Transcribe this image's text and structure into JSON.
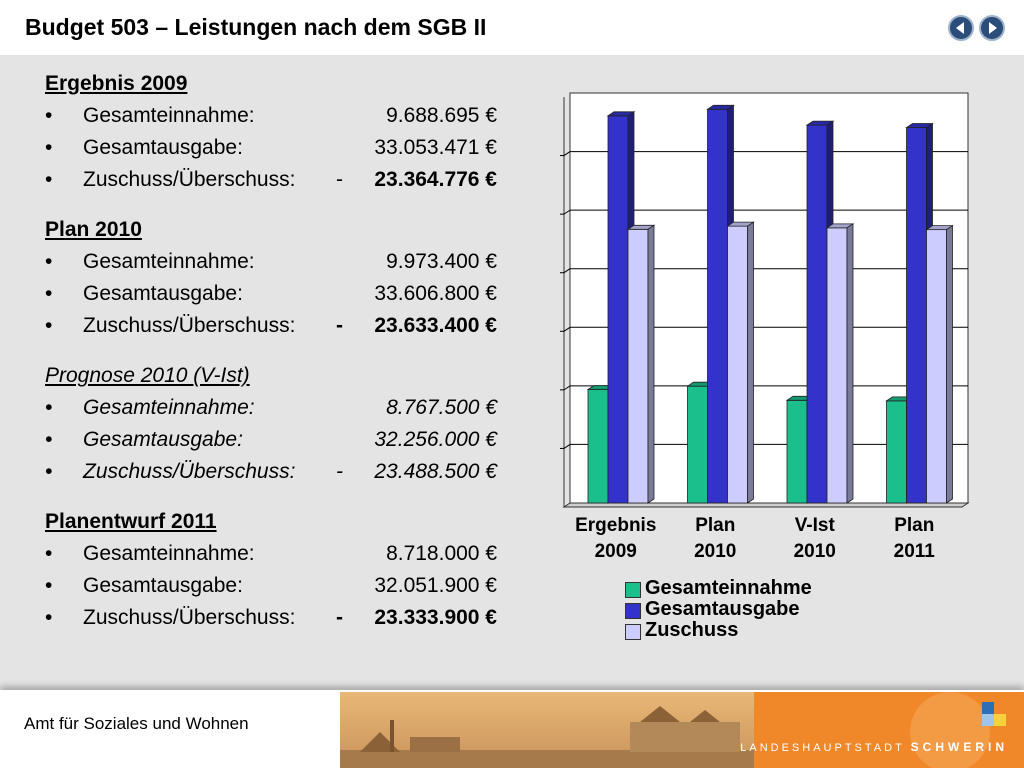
{
  "header": {
    "title": "Budget 503 – Leistungen nach dem SGB II",
    "nav_prev_icon": "arrow-left-icon",
    "nav_next_icon": "arrow-right-icon"
  },
  "sections": [
    {
      "heading": "Ergebnis 2009",
      "rows": [
        {
          "bullet": "•",
          "label": "Gesamteinnahme:",
          "value": "9.688.695 €"
        },
        {
          "bullet": "•",
          "label": "Gesamtausgabe:",
          "value": "33.053.471 €"
        },
        {
          "bullet": "•",
          "label": "Zuschuss/Überschuss:",
          "dash": "-",
          "value": "23.364.776 €"
        }
      ]
    },
    {
      "heading": "Plan 2010",
      "rows": [
        {
          "bullet": "•",
          "label": "Gesamteinnahme:",
          "value": "9.973.400 €"
        },
        {
          "bullet": "•",
          "label": "Gesamtausgabe:",
          "value": "33.606.800 €"
        },
        {
          "bullet": "•",
          "label": "Zuschuss/Überschuss:",
          "dash": "-",
          "value": "23.633.400 €"
        }
      ]
    },
    {
      "heading": "Prognose 2010 (V-Ist)",
      "rows": [
        {
          "bullet": "•",
          "label": "Gesamteinnahme:",
          "value": "8.767.500 €"
        },
        {
          "bullet": "•",
          "label": "Gesamtausgabe:",
          "value": "32.256.000 €"
        },
        {
          "bullet": "•",
          "label": "Zuschuss/Überschuss:",
          "dash": "-",
          "value": "23.488.500 €"
        }
      ]
    },
    {
      "heading": "Planentwurf 2011",
      "rows": [
        {
          "bullet": "•",
          "label": "Gesamteinnahme:",
          "value": "8.718.000 €"
        },
        {
          "bullet": "•",
          "label": "Gesamtausgabe:",
          "value": "32.051.900 €"
        },
        {
          "bullet": "•",
          "label": "Zuschuss/Überschuss:",
          "dash": "-",
          "value": "23.333.900 €"
        }
      ]
    }
  ],
  "chart_data": {
    "type": "bar",
    "categories": [
      "Ergebnis 2009",
      "Plan 2010",
      "V-Ist 2010",
      "Plan 2011"
    ],
    "category_lines": [
      [
        "Ergebnis",
        "2009"
      ],
      [
        "Plan",
        "2010"
      ],
      [
        "V-Ist",
        "2010"
      ],
      [
        "Plan",
        "2011"
      ]
    ],
    "series": [
      {
        "name": "Gesamteinnahme",
        "values": [
          9688695,
          9973400,
          8767500,
          8718000
        ],
        "color": "#1abf8c"
      },
      {
        "name": "Gesamtausgabe",
        "values": [
          33053471,
          33606800,
          32256000,
          32051900
        ],
        "color": "#3333cc"
      },
      {
        "name": "Zuschuss",
        "values": [
          23364776,
          23633400,
          23488500,
          23333900
        ],
        "color": "#ccccff"
      }
    ],
    "ylim": [
      0,
      35000000
    ],
    "grid": true,
    "three_d": true,
    "legend_position": "bottom"
  },
  "footer": {
    "department": "Amt für Soziales und Wohnen",
    "city_prefix": "LANDESHAUPTSTADT",
    "city_name": "SCHWERIN"
  }
}
